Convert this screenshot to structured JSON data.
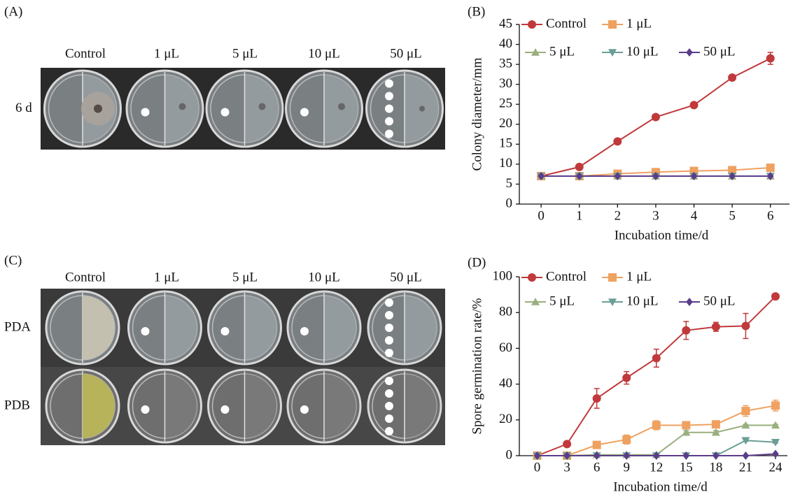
{
  "photo_panels": [
    {
      "label": "(A)",
      "columns": [
        "Control",
        "1 μL",
        "5 μL",
        "10 μL",
        "50 μL"
      ],
      "rows": [
        "6 d"
      ]
    },
    {
      "label": "(C)",
      "columns": [
        "Control",
        "1 μL",
        "5 μL",
        "10 μL",
        "50 μL"
      ],
      "rows": [
        "PDA",
        "PDB"
      ]
    }
  ],
  "chart_data": [
    {
      "type": "line",
      "panel_label": "(B)",
      "x_label": "Incubation time/d",
      "y_label": "Colony diameter/mm",
      "x": [
        0,
        1,
        2,
        3,
        4,
        5,
        6
      ],
      "xlim": [
        -0.57,
        6.5
      ],
      "xticks": [
        0,
        1,
        2,
        3,
        4,
        5,
        6
      ],
      "ylim": [
        0,
        45
      ],
      "yticks": [
        0,
        5,
        10,
        15,
        20,
        25,
        30,
        35,
        40,
        45
      ],
      "series": [
        {
          "name": "Control",
          "color": "#c0393b",
          "marker": "circle",
          "values": [
            7,
            9.3,
            15.7,
            21.8,
            24.8,
            31.7,
            36.5
          ],
          "errors": [
            0.3,
            0.3,
            0.3,
            0.3,
            0.3,
            0.5,
            1.5
          ]
        },
        {
          "name": "1 μL",
          "color": "#efa160",
          "marker": "square",
          "values": [
            7,
            7,
            7.6,
            8,
            8.3,
            8.5,
            9.1
          ],
          "errors": [
            0.2,
            0.2,
            0.3,
            0.3,
            0.3,
            0.3,
            0.4
          ]
        },
        {
          "name": "5 μL",
          "color": "#9aaf7e",
          "marker": "triangle",
          "values": [
            7,
            7,
            7,
            7,
            7,
            7,
            7
          ],
          "errors": [
            0,
            0,
            0,
            0,
            0,
            0,
            0
          ]
        },
        {
          "name": "10 μL",
          "color": "#6a9e96",
          "marker": "triangle-down",
          "values": [
            7,
            7,
            7,
            7,
            7,
            7,
            7
          ],
          "errors": [
            0,
            0,
            0,
            0,
            0,
            0,
            0
          ]
        },
        {
          "name": "50 μL",
          "color": "#5a3d8a",
          "marker": "diamond",
          "values": [
            7,
            7,
            7,
            7,
            7,
            7,
            7
          ],
          "errors": [
            0,
            0,
            0,
            0,
            0,
            0,
            0
          ]
        }
      ]
    },
    {
      "type": "line",
      "panel_label": "(D)",
      "x_label": "Incubation time/d",
      "y_label": "Spore germination rate/%",
      "x": [
        0,
        3,
        6,
        9,
        12,
        15,
        18,
        21,
        24
      ],
      "xlim": [
        -1.8,
        25.2
      ],
      "xticks": [
        0,
        3,
        6,
        9,
        12,
        15,
        18,
        21,
        24
      ],
      "ylim": [
        0,
        100
      ],
      "yticks": [
        0,
        20,
        40,
        60,
        80,
        100
      ],
      "series": [
        {
          "name": "Control",
          "color": "#c0393b",
          "marker": "circle",
          "values": [
            0,
            6.5,
            32,
            43.5,
            54.5,
            70,
            72,
            72.5,
            89
          ],
          "errors": [
            0,
            0.5,
            5.5,
            3.5,
            5,
            5,
            2.5,
            7,
            1.5
          ]
        },
        {
          "name": "1 μL",
          "color": "#efa160",
          "marker": "square",
          "values": [
            0,
            0,
            6,
            9,
            17,
            17,
            17.5,
            25,
            28
          ],
          "errors": [
            0,
            0,
            1,
            2.5,
            2.5,
            1,
            1.5,
            3,
            3
          ]
        },
        {
          "name": "5 μL",
          "color": "#9aaf7e",
          "marker": "triangle",
          "values": [
            0,
            0,
            0.5,
            0.5,
            0.5,
            13,
            13,
            17,
            17
          ],
          "errors": [
            0,
            0,
            0,
            0,
            0,
            1,
            1,
            0.5,
            0.5
          ]
        },
        {
          "name": "10 μL",
          "color": "#6a9e96",
          "marker": "triangle-down",
          "values": [
            0,
            0,
            0,
            0,
            0,
            0,
            0,
            8.5,
            7.5
          ],
          "errors": [
            0,
            0,
            0,
            0,
            0,
            0,
            0,
            0.5,
            0.5
          ]
        },
        {
          "name": "50 μL",
          "color": "#5a3d8a",
          "marker": "diamond",
          "values": [
            0,
            0,
            0,
            0,
            0,
            0,
            0,
            0,
            1
          ],
          "errors": [
            0,
            0,
            0,
            0,
            0,
            0,
            0,
            0,
            0
          ]
        }
      ]
    }
  ]
}
